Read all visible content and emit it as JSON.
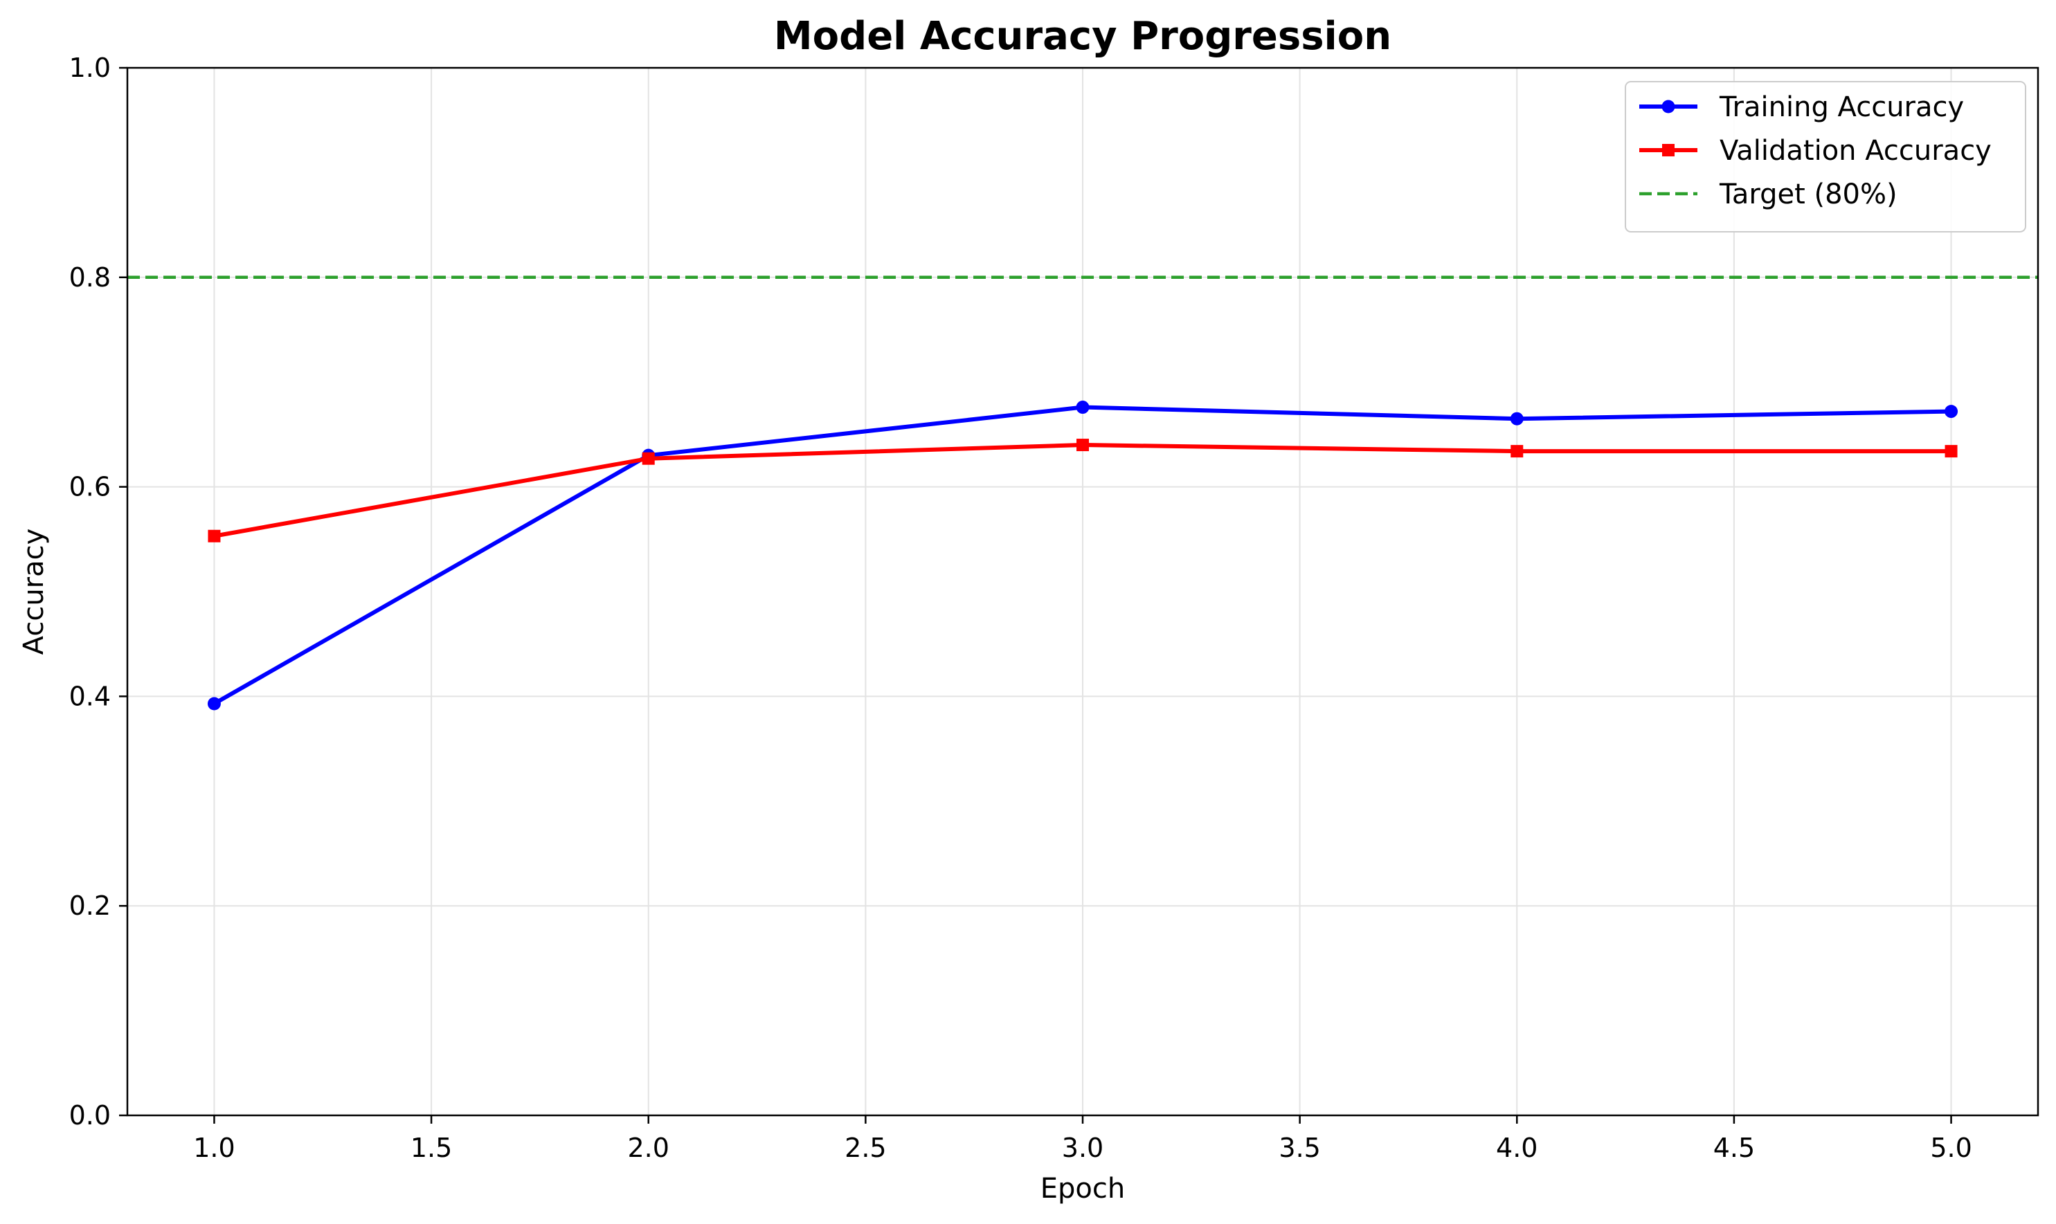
{
  "chart_data": {
    "type": "line",
    "title": "Model Accuracy Progression",
    "xlabel": "Epoch",
    "ylabel": "Accuracy",
    "xlim": [
      0.8,
      5.2
    ],
    "ylim": [
      0.0,
      1.0
    ],
    "xticks": [
      1.0,
      1.5,
      2.0,
      2.5,
      3.0,
      3.5,
      4.0,
      4.5,
      5.0
    ],
    "xtick_labels": [
      "1.0",
      "1.5",
      "2.0",
      "2.5",
      "3.0",
      "3.5",
      "4.0",
      "4.5",
      "5.0"
    ],
    "yticks": [
      0.0,
      0.2,
      0.4,
      0.6,
      0.8,
      1.0
    ],
    "ytick_labels": [
      "0.0",
      "0.2",
      "0.4",
      "0.6",
      "0.8",
      "1.0"
    ],
    "grid": true,
    "legend_position": "top-right",
    "series": [
      {
        "name": "Training Accuracy",
        "color": "#0000ff",
        "marker": "circle",
        "linestyle": "solid",
        "x": [
          1,
          2,
          3,
          4,
          5
        ],
        "y": [
          0.393,
          0.63,
          0.676,
          0.665,
          0.672
        ]
      },
      {
        "name": "Validation Accuracy",
        "color": "#ff0000",
        "marker": "square",
        "linestyle": "solid",
        "x": [
          1,
          2,
          3,
          4,
          5
        ],
        "y": [
          0.553,
          0.627,
          0.64,
          0.634,
          0.634
        ]
      }
    ],
    "reference_lines": [
      {
        "name": "Target (80%)",
        "orientation": "horizontal",
        "y": 0.8,
        "color": "#2ca02c",
        "linestyle": "dashed"
      }
    ]
  }
}
